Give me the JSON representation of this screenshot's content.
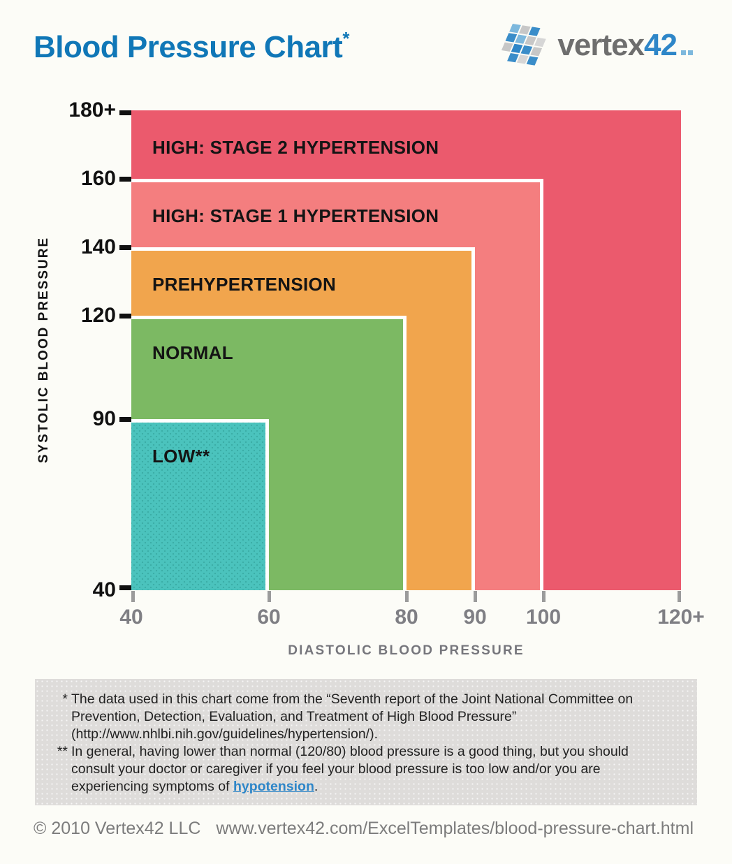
{
  "header": {
    "title": "Blood Pressure Chart",
    "title_asterisk": "*"
  },
  "logo": {
    "word_gray": "vertex",
    "word_blue": "42"
  },
  "chart_data": {
    "type": "area",
    "title": "Blood Pressure Chart",
    "xlabel": "DIASTOLIC BLOOD PRESSURE",
    "ylabel": "SYSTOLIC BLOOD PRESSURE",
    "x_range": [
      40,
      120
    ],
    "y_range": [
      40,
      180
    ],
    "grid": false,
    "legend": "none",
    "x_ticks": [
      {
        "value": 40,
        "label": "40"
      },
      {
        "value": 60,
        "label": "60"
      },
      {
        "value": 80,
        "label": "80"
      },
      {
        "value": 90,
        "label": "90"
      },
      {
        "value": 100,
        "label": "100"
      },
      {
        "value": 120,
        "label": "120+"
      }
    ],
    "y_ticks": [
      {
        "value": 40,
        "label": "40"
      },
      {
        "value": 90,
        "label": "90"
      },
      {
        "value": 120,
        "label": "120"
      },
      {
        "value": 140,
        "label": "140"
      },
      {
        "value": 160,
        "label": "160"
      },
      {
        "value": 180,
        "label": "180+"
      }
    ],
    "zones": [
      {
        "id": "stage2-hypertension",
        "label": "HIGH: STAGE 2 HYPERTENSION",
        "diastolic_max": 120,
        "systolic_max": 180,
        "diastolic_max_open": true,
        "systolic_max_open": true,
        "color": "#eb5a6d",
        "dotted": false
      },
      {
        "id": "stage1-hypertension",
        "label": "HIGH: STAGE 1 HYPERTENSION",
        "diastolic_max": 100,
        "systolic_max": 160,
        "color": "#f47e7f",
        "dotted": false
      },
      {
        "id": "prehypertension",
        "label": "PREHYPERTENSION",
        "diastolic_max": 90,
        "systolic_max": 140,
        "color": "#f1a54d",
        "dotted": false
      },
      {
        "id": "normal",
        "label": "NORMAL",
        "diastolic_max": 80,
        "systolic_max": 120,
        "color": "#7cb963",
        "dotted": false
      },
      {
        "id": "low",
        "label": "LOW**",
        "diastolic_max": 60,
        "systolic_max": 90,
        "color": "#4bc3bd",
        "dotted": true
      }
    ]
  },
  "footnotes": {
    "note1": {
      "marker": "*",
      "lines": [
        "The data used in this chart come from the “Seventh report of the Joint National Committee on",
        "Prevention, Detection, Evaluation, and Treatment of High Blood Pressure”",
        "(http://www.nhlbi.nih.gov/guidelines/hypertension/)."
      ]
    },
    "note2": {
      "marker": "**",
      "lines": [
        "In general, having lower than normal (120/80) blood pressure is a good thing, but you should",
        "consult your doctor or caregiver if you feel your blood pressure is too low and/or you are"
      ],
      "line3_prefix": "experiencing symptoms of ",
      "link_text": "hypotension",
      "line3_suffix": "."
    }
  },
  "footer": {
    "copyright": "© 2010 Vertex42 LLC",
    "url": "www.vertex42.com/ExcelTemplates/blood-pressure-chart.html"
  }
}
